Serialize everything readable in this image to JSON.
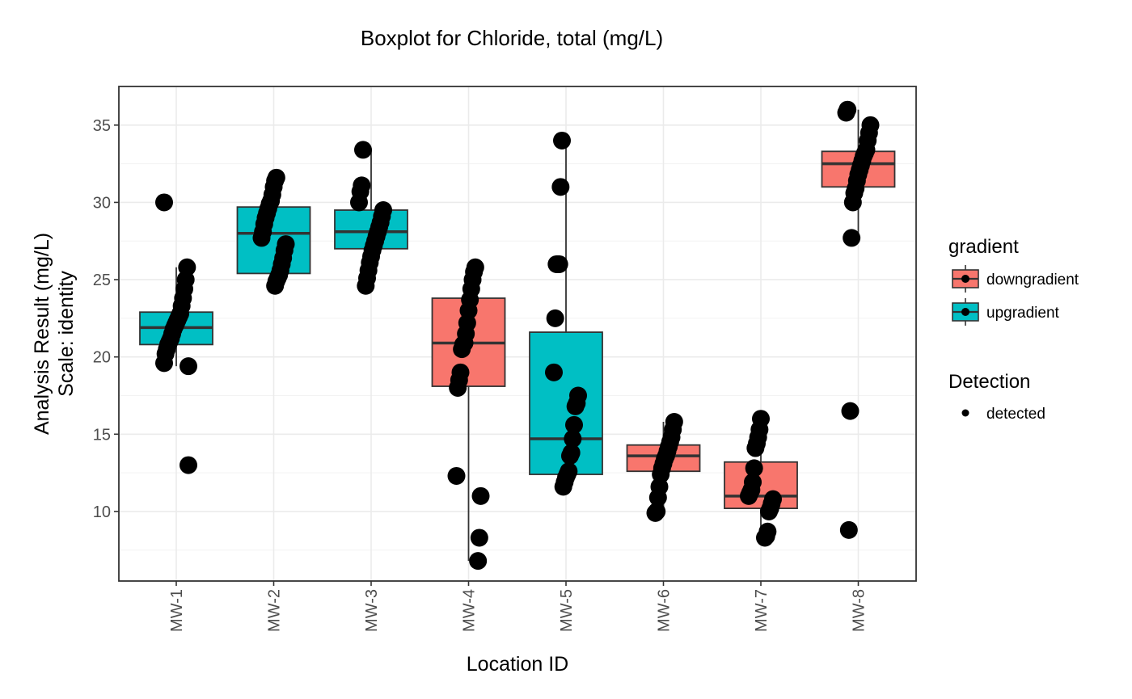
{
  "chart_data": {
    "type": "boxplot",
    "title": "Boxplot for Chloride, total (mg/L)",
    "xlabel": "Location ID",
    "ylabel": [
      "Analysis Result (mg/L)",
      "Scale: identity"
    ],
    "ylim": [
      5.5,
      37.5
    ],
    "yticks": [
      10,
      15,
      20,
      25,
      30,
      35
    ],
    "categories": [
      "MW-1",
      "MW-2",
      "MW-3",
      "MW-4",
      "MW-5",
      "MW-6",
      "MW-7",
      "MW-8"
    ],
    "colors": {
      "downgradient": "#F8766D",
      "upgradient": "#00BFC4",
      "point": "#000000",
      "outline": "#333333"
    },
    "legend": {
      "placement": "right",
      "gradient": {
        "title": "gradient",
        "entries": [
          "downgradient",
          "upgradient"
        ]
      },
      "detection": {
        "title": "Detection",
        "entries": [
          "detected"
        ]
      }
    },
    "boxes": [
      {
        "category": "MW-1",
        "gradient": "upgradient",
        "whisker_low": 19.4,
        "q1": 20.8,
        "median": 21.9,
        "q3": 22.9,
        "whisker_high": 25.8,
        "points": [
          30.0,
          13.0,
          25.8,
          25.0,
          24.4,
          23.8,
          23.3,
          22.8,
          22.6,
          22.4,
          22.2,
          22.0,
          21.8,
          21.5,
          21.2,
          21.0,
          20.8,
          20.5,
          20.2,
          19.6,
          19.4
        ]
      },
      {
        "category": "MW-2",
        "gradient": "upgradient",
        "whisker_low": 24.6,
        "q1": 25.4,
        "median": 28.0,
        "q3": 29.7,
        "whisker_high": 31.6,
        "points": [
          31.6,
          31.4,
          31.0,
          30.5,
          30.1,
          29.9,
          29.6,
          29.3,
          29.0,
          28.6,
          28.1,
          27.7,
          27.3,
          26.9,
          26.4,
          26.0,
          25.6,
          25.3,
          25.1,
          24.9,
          24.6
        ]
      },
      {
        "category": "MW-3",
        "gradient": "upgradient",
        "whisker_low": 24.6,
        "q1": 27.0,
        "median": 28.1,
        "q3": 29.5,
        "whisker_high": 33.4,
        "points": [
          33.4,
          31.1,
          30.7,
          30.0,
          29.5,
          29.1,
          28.7,
          28.4,
          28.1,
          27.8,
          27.5,
          27.2,
          26.9,
          26.5,
          26.1,
          25.6,
          25.1,
          24.6
        ]
      },
      {
        "category": "MW-4",
        "gradient": "downgradient",
        "whisker_low": 6.8,
        "q1": 18.1,
        "median": 20.9,
        "q3": 23.8,
        "whisker_high": 25.8,
        "points": [
          25.8,
          25.5,
          25.0,
          24.4,
          23.7,
          23.0,
          22.2,
          21.5,
          20.9,
          20.8,
          20.5,
          19.0,
          18.5,
          18.0,
          12.3,
          11.0,
          8.3,
          6.8
        ]
      },
      {
        "category": "MW-5",
        "gradient": "upgradient",
        "whisker_low": 11.6,
        "q1": 12.4,
        "median": 14.7,
        "q3": 21.6,
        "whisker_high": 34.0,
        "points": [
          34.0,
          31.0,
          26.0,
          26.0,
          26.0,
          22.5,
          19.0,
          17.5,
          17.0,
          16.8,
          15.6,
          14.7,
          13.8,
          13.6,
          12.6,
          12.4,
          12.2,
          11.9,
          11.6
        ]
      },
      {
        "category": "MW-6",
        "gradient": "downgradient",
        "whisker_low": 9.9,
        "q1": 12.6,
        "median": 13.6,
        "q3": 14.3,
        "whisker_high": 15.8,
        "points": [
          15.8,
          15.3,
          14.8,
          14.5,
          14.2,
          13.9,
          13.6,
          13.4,
          13.1,
          12.8,
          12.4,
          11.6,
          10.9,
          10.0,
          9.9
        ]
      },
      {
        "category": "MW-7",
        "gradient": "downgradient",
        "whisker_low": 8.3,
        "q1": 10.2,
        "median": 11.0,
        "q3": 13.2,
        "whisker_high": 16.0,
        "points": [
          16.0,
          15.3,
          14.8,
          14.4,
          14.1,
          12.8,
          11.9,
          11.4,
          11.2,
          11.0,
          10.8,
          10.5,
          10.2,
          10.0,
          8.7,
          8.4,
          8.3
        ]
      },
      {
        "category": "MW-8",
        "gradient": "downgradient",
        "whisker_low": 27.7,
        "q1": 31.0,
        "median": 32.5,
        "q3": 33.3,
        "whisker_high": 36.0,
        "points": [
          36.0,
          35.8,
          35.0,
          34.5,
          34.0,
          33.4,
          33.2,
          33.0,
          32.7,
          32.4,
          32.1,
          31.8,
          31.4,
          30.9,
          30.6,
          30.0,
          27.7,
          16.5,
          8.8
        ]
      }
    ]
  }
}
